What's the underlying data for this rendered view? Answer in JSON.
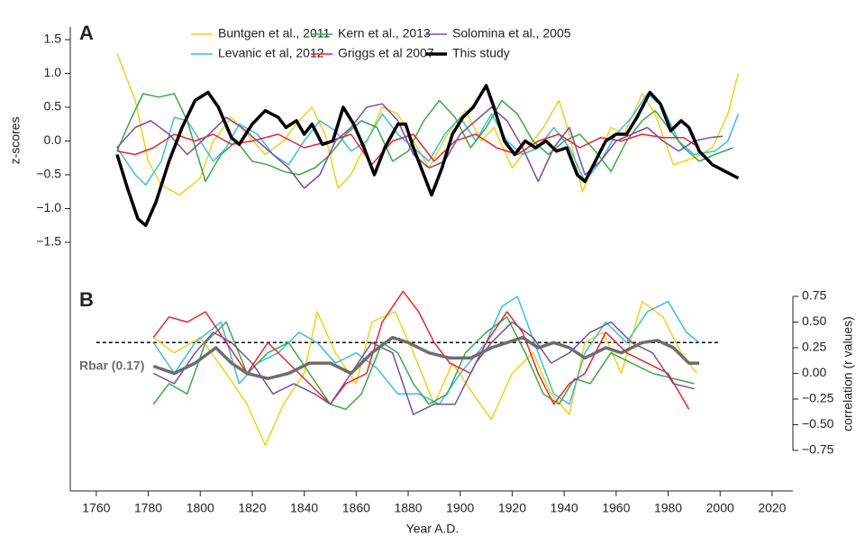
{
  "chart_data": [
    {
      "type": "line",
      "panel": "A",
      "ylabel": "z-scores",
      "xlim": [
        1750,
        2028
      ],
      "ylim": [
        -1.5,
        1.5
      ],
      "yticks": [
        1.5,
        {
          "value": 1.0,
          "label": "1.0"
        },
        0.5,
        {
          "value": 0.0,
          "label": "0.0"
        },
        {
          "value": -0.5,
          "label": "−0.5"
        },
        {
          "value": -1.0,
          "label": "−1.0"
        },
        {
          "value": -1.5,
          "label": "−1.5"
        }
      ],
      "series": [
        {
          "name": "Buntgen et al., 2011",
          "color": "#f2d11a",
          "width": 1.5,
          "x": [
            1768,
            1775,
            1780,
            1785,
            1792,
            1800,
            1805,
            1812,
            1818,
            1825,
            1832,
            1838,
            1843,
            1848,
            1853,
            1858,
            1863,
            1870,
            1876,
            1882,
            1888,
            1895,
            1902,
            1908,
            1913,
            1920,
            1926,
            1932,
            1938,
            1942,
            1947,
            1952,
            1958,
            1963,
            1970,
            1975,
            1982,
            1990,
            1997,
            2003,
            2007
          ],
          "values": [
            1.3,
            0.6,
            -0.3,
            -0.65,
            -0.8,
            -0.55,
            0.0,
            0.35,
            0.1,
            -0.2,
            0.0,
            0.3,
            0.5,
            0.1,
            -0.7,
            -0.5,
            -0.1,
            0.5,
            0.4,
            0.0,
            -0.4,
            0.1,
            0.45,
            0.0,
            0.2,
            -0.4,
            -0.1,
            0.2,
            0.6,
            0.1,
            -0.75,
            -0.3,
            0.2,
            0.1,
            0.7,
            0.4,
            -0.35,
            -0.25,
            -0.1,
            0.4,
            1.0
          ]
        },
        {
          "name": "Levanic et al, 2012",
          "color": "#3dbbe6",
          "width": 1.5,
          "x": [
            1768,
            1775,
            1779,
            1785,
            1790,
            1795,
            1800,
            1805,
            1810,
            1815,
            1822,
            1828,
            1834,
            1840,
            1846,
            1852,
            1858,
            1864,
            1870,
            1876,
            1882,
            1888,
            1894,
            1900,
            1906,
            1912,
            1918,
            1924,
            1930,
            1936,
            1942,
            1948,
            1954,
            1960,
            1966,
            1972,
            1978,
            1984,
            1990,
            1998,
            2003,
            2007
          ],
          "values": [
            -0.1,
            -0.5,
            -0.65,
            -0.3,
            0.35,
            0.3,
            0.0,
            -0.3,
            -0.1,
            0.25,
            0.1,
            -0.2,
            -0.35,
            0.0,
            0.3,
            0.15,
            -0.15,
            0.0,
            0.4,
            0.1,
            -0.1,
            -0.3,
            0.1,
            0.35,
            0.0,
            0.4,
            0.0,
            -0.2,
            -0.1,
            0.2,
            -0.1,
            -0.6,
            -0.3,
            0.1,
            0.35,
            0.7,
            0.5,
            0.0,
            -0.2,
            -0.15,
            0.0,
            0.4
          ]
        },
        {
          "name": "Kern et al., 2013",
          "color": "#3aaa48",
          "width": 1.5,
          "x": [
            1768,
            1773,
            1778,
            1784,
            1790,
            1795,
            1802,
            1808,
            1814,
            1820,
            1826,
            1832,
            1838,
            1844,
            1850,
            1856,
            1862,
            1868,
            1874,
            1880,
            1886,
            1892,
            1898,
            1904,
            1910,
            1916,
            1922,
            1928,
            1934,
            1940,
            1946,
            1952,
            1958,
            1964,
            1970,
            1975,
            1980,
            1986,
            1992,
            1998,
            2005
          ],
          "values": [
            -0.15,
            0.3,
            0.7,
            0.65,
            0.7,
            0.3,
            -0.6,
            -0.2,
            0.0,
            -0.3,
            -0.35,
            -0.45,
            -0.5,
            -0.4,
            -0.2,
            0.1,
            0.3,
            0.2,
            -0.3,
            -0.15,
            0.3,
            0.6,
            0.35,
            -0.1,
            0.2,
            0.6,
            0.4,
            0.0,
            -0.2,
            0.0,
            0.1,
            -0.15,
            -0.45,
            0.0,
            0.3,
            0.45,
            0.2,
            -0.1,
            -0.3,
            -0.2,
            -0.1
          ]
        },
        {
          "name": "Griggs et al 2007",
          "color": "#e8262c",
          "width": 1.5,
          "x": [
            1768,
            1775,
            1782,
            1790,
            1798,
            1805,
            1812,
            1820,
            1830,
            1840,
            1850,
            1858,
            1866,
            1874,
            1882,
            1890,
            1898,
            1906,
            1914,
            1922,
            1930,
            1938,
            1946,
            1954,
            1962,
            1970,
            1978,
            1986,
            1992
          ],
          "values": [
            -0.15,
            -0.2,
            -0.1,
            0.1,
            0.0,
            0.1,
            -0.05,
            0.0,
            0.1,
            -0.1,
            0.0,
            0.1,
            -0.35,
            0.0,
            0.1,
            -0.3,
            0.0,
            0.1,
            -0.1,
            -0.2,
            0.0,
            0.1,
            -0.1,
            0.05,
            0.0,
            0.1,
            0.05,
            0.05,
            -0.1
          ]
        },
        {
          "name": "Solomina et al., 2005",
          "color": "#7a4fa0",
          "width": 1.5,
          "x": [
            1768,
            1775,
            1781,
            1788,
            1795,
            1802,
            1810,
            1816,
            1822,
            1828,
            1834,
            1840,
            1846,
            1852,
            1858,
            1864,
            1870,
            1876,
            1882,
            1888,
            1894,
            1900,
            1906,
            1912,
            1918,
            1924,
            1930,
            1936,
            1942,
            1948,
            1954,
            1960,
            1966,
            1972,
            1978,
            1984,
            1990,
            1996,
            2001
          ],
          "values": [
            -0.1,
            0.2,
            0.3,
            0.1,
            -0.2,
            0.05,
            0.35,
            0.2,
            0.0,
            -0.2,
            -0.4,
            -0.7,
            -0.5,
            0.0,
            0.2,
            0.5,
            0.55,
            0.3,
            -0.2,
            -0.4,
            -0.3,
            0.1,
            0.3,
            0.5,
            0.3,
            -0.1,
            -0.6,
            -0.1,
            0.2,
            -0.5,
            -0.3,
            0.0,
            0.1,
            0.2,
            0.0,
            -0.15,
            0.0,
            0.05,
            0.07
          ]
        },
        {
          "name": "This study",
          "color": "#000000",
          "width": 3.5,
          "x": [
            1768,
            1772,
            1776,
            1779,
            1783,
            1788,
            1793,
            1798,
            1803,
            1807,
            1812,
            1815,
            1820,
            1825,
            1830,
            1833,
            1837,
            1840,
            1843,
            1847,
            1851,
            1855,
            1859,
            1863,
            1867,
            1871,
            1876,
            1879,
            1882,
            1886,
            1889,
            1893,
            1897,
            1901,
            1905,
            1910,
            1913,
            1917,
            1921,
            1925,
            1929,
            1933,
            1937,
            1941,
            1945,
            1948,
            1952,
            1956,
            1960,
            1964,
            1968,
            1973,
            1977,
            1981,
            1985,
            1988,
            1992,
            1997,
            2002,
            2007
          ],
          "values": [
            -0.2,
            -0.7,
            -1.15,
            -1.25,
            -0.9,
            -0.3,
            0.2,
            0.6,
            0.72,
            0.5,
            0.05,
            -0.05,
            0.25,
            0.45,
            0.35,
            0.2,
            0.3,
            0.1,
            0.25,
            -0.05,
            0.0,
            0.5,
            0.25,
            -0.1,
            -0.5,
            -0.1,
            0.25,
            0.25,
            -0.1,
            -0.5,
            -0.8,
            -0.4,
            0.1,
            0.35,
            0.5,
            0.82,
            0.5,
            0.0,
            -0.2,
            0.0,
            -0.1,
            0.0,
            -0.15,
            -0.1,
            -0.5,
            -0.6,
            -0.3,
            0.0,
            0.1,
            0.1,
            0.35,
            0.72,
            0.55,
            0.15,
            0.3,
            0.2,
            -0.15,
            -0.35,
            -0.45,
            -0.55
          ]
        }
      ]
    },
    {
      "type": "line",
      "panel": "B",
      "ylabel": "correlation (r values)",
      "xlabel": "Year A.D.",
      "xlim": [
        1750,
        2028
      ],
      "ylim": [
        -0.75,
        0.75
      ],
      "xticks": [
        1760,
        1780,
        1800,
        1820,
        1840,
        1860,
        1880,
        1900,
        1920,
        1940,
        1960,
        1980,
        2000,
        2020
      ],
      "yticks": [
        0.75,
        {
          "value": 0.5,
          "label": "0.50"
        },
        0.25,
        {
          "value": 0.0,
          "label": "0.00"
        },
        {
          "value": -0.25,
          "label": "−0.25"
        },
        {
          "value": -0.5,
          "label": "−0.50"
        },
        {
          "value": -0.75,
          "label": "−0.75"
        }
      ],
      "reference_line": {
        "y": 0.3,
        "x": [
          1760,
          2000
        ]
      },
      "series": [
        {
          "color": "#f2d11a",
          "width": 1.5,
          "x": [
            1782,
            1790,
            1800,
            1810,
            1818,
            1825,
            1832,
            1840,
            1845,
            1852,
            1860,
            1866,
            1875,
            1882,
            1890,
            1897,
            1905,
            1912,
            1920,
            1928,
            1935,
            1942,
            1948,
            1955,
            1962,
            1970,
            1978,
            1985,
            1991
          ],
          "values": [
            0.35,
            0.2,
            0.35,
            0.0,
            -0.3,
            -0.7,
            -0.3,
            0.0,
            0.6,
            0.2,
            -0.1,
            0.5,
            0.6,
            0.2,
            -0.3,
            0.1,
            -0.2,
            -0.45,
            0.0,
            0.2,
            -0.2,
            -0.4,
            0.3,
            0.4,
            0.0,
            0.7,
            0.55,
            0.2,
            0.0
          ]
        },
        {
          "color": "#3dbbe6",
          "width": 1.5,
          "x": [
            1782,
            1790,
            1798,
            1808,
            1815,
            1822,
            1830,
            1838,
            1845,
            1852,
            1860,
            1868,
            1876,
            1884,
            1892,
            1900,
            1910,
            1916,
            1922,
            1930,
            1936,
            1942,
            1948,
            1956,
            1964,
            1972,
            1980,
            1987,
            1992
          ],
          "values": [
            0.3,
            0.0,
            0.3,
            0.5,
            -0.1,
            0.1,
            0.2,
            0.4,
            0.3,
            0.1,
            0.2,
            0.05,
            -0.2,
            -0.2,
            -0.3,
            0.0,
            0.3,
            0.65,
            0.75,
            0.2,
            -0.2,
            -0.3,
            0.2,
            0.5,
            0.3,
            0.6,
            0.7,
            0.4,
            0.3
          ]
        },
        {
          "color": "#3aaa48",
          "width": 1.5,
          "x": [
            1782,
            1788,
            1795,
            1802,
            1810,
            1818,
            1826,
            1834,
            1842,
            1850,
            1856,
            1862,
            1870,
            1876,
            1882,
            1888,
            1895,
            1902,
            1910,
            1918,
            1925,
            1932,
            1938,
            1944,
            1950,
            1958,
            1966,
            1974,
            1982,
            1990
          ],
          "values": [
            -0.3,
            -0.1,
            -0.2,
            0.3,
            0.5,
            0.0,
            0.2,
            0.3,
            0.0,
            -0.3,
            -0.35,
            -0.2,
            0.3,
            0.2,
            -0.1,
            -0.3,
            -0.2,
            0.2,
            0.4,
            0.55,
            0.2,
            -0.2,
            -0.3,
            -0.05,
            -0.1,
            0.2,
            0.1,
            0.0,
            -0.05,
            -0.1
          ]
        },
        {
          "color": "#e8262c",
          "width": 1.5,
          "x": [
            1782,
            1788,
            1795,
            1802,
            1810,
            1818,
            1826,
            1834,
            1842,
            1850,
            1856,
            1864,
            1870,
            1878,
            1884,
            1890,
            1896,
            1904,
            1910,
            1918,
            1924,
            1930,
            1936,
            1942,
            1948,
            1956,
            1964,
            1972,
            1980,
            1988
          ],
          "values": [
            0.35,
            0.55,
            0.5,
            0.6,
            0.3,
            0.0,
            0.3,
            0.1,
            -0.1,
            -0.3,
            -0.1,
            0.0,
            0.5,
            0.8,
            0.6,
            0.3,
            0.1,
            0.0,
            0.3,
            0.6,
            0.4,
            0.0,
            -0.3,
            -0.1,
            0.0,
            0.4,
            0.2,
            0.1,
            0.0,
            -0.35
          ]
        },
        {
          "color": "#7a4fa0",
          "width": 1.5,
          "x": [
            1782,
            1790,
            1798,
            1805,
            1812,
            1820,
            1828,
            1836,
            1844,
            1850,
            1858,
            1866,
            1874,
            1882,
            1890,
            1898,
            1906,
            1912,
            1920,
            1928,
            1935,
            1942,
            1950,
            1958,
            1966,
            1974,
            1982,
            1990
          ],
          "values": [
            0.0,
            -0.1,
            0.2,
            0.4,
            0.3,
            0.1,
            -0.2,
            -0.1,
            -0.2,
            -0.3,
            0.0,
            0.3,
            0.2,
            -0.4,
            -0.3,
            -0.3,
            0.1,
            0.3,
            0.5,
            0.35,
            0.1,
            0.2,
            0.4,
            0.5,
            0.3,
            0.2,
            -0.1,
            -0.15
          ]
        },
        {
          "name": "Rbar (0.17)",
          "color": "#6d6d6d",
          "width": 3.5,
          "x": [
            1782,
            1790,
            1798,
            1806,
            1812,
            1818,
            1826,
            1834,
            1842,
            1850,
            1858,
            1866,
            1874,
            1880,
            1888,
            1896,
            1904,
            1912,
            1918,
            1924,
            1930,
            1936,
            1942,
            1948,
            1956,
            1962,
            1970,
            1976,
            1982,
            1988,
            1992
          ],
          "values": [
            0.07,
            0.0,
            0.1,
            0.25,
            0.1,
            0.0,
            -0.05,
            0.0,
            0.1,
            0.1,
            0.0,
            0.2,
            0.35,
            0.3,
            0.2,
            0.15,
            0.15,
            0.25,
            0.3,
            0.35,
            0.25,
            0.3,
            0.25,
            0.15,
            0.25,
            0.2,
            0.3,
            0.32,
            0.25,
            0.1,
            0.1
          ]
        }
      ]
    }
  ]
}
